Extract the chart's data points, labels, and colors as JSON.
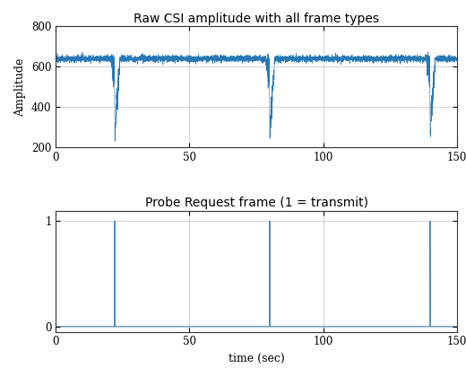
{
  "title1": "Raw CSI amplitude with all frame types",
  "title2": "Probe Request frame (1 = transmit)",
  "xlabel": "time (sec)",
  "ylabel1": "Amplitude",
  "xlim": [
    0,
    150
  ],
  "ylim1": [
    200,
    800
  ],
  "ylim2": [
    -0.05,
    1.1
  ],
  "yticks1": [
    200,
    400,
    600,
    800
  ],
  "yticks2": [
    0,
    1
  ],
  "xticks": [
    0,
    50,
    100,
    150
  ],
  "line_color": "#2878b5",
  "bg_color": "#ffffff",
  "grid_color": "#c0c0c0",
  "dip_times": [
    22,
    80,
    140
  ],
  "probe_times": [
    22,
    80,
    140
  ],
  "baseline_amplitude": 640,
  "noise_std": 8,
  "dip_min": 250,
  "total_time": 150,
  "n_points": 6000,
  "title_fontsize": 10,
  "label_fontsize": 9,
  "tick_fontsize": 8.5
}
